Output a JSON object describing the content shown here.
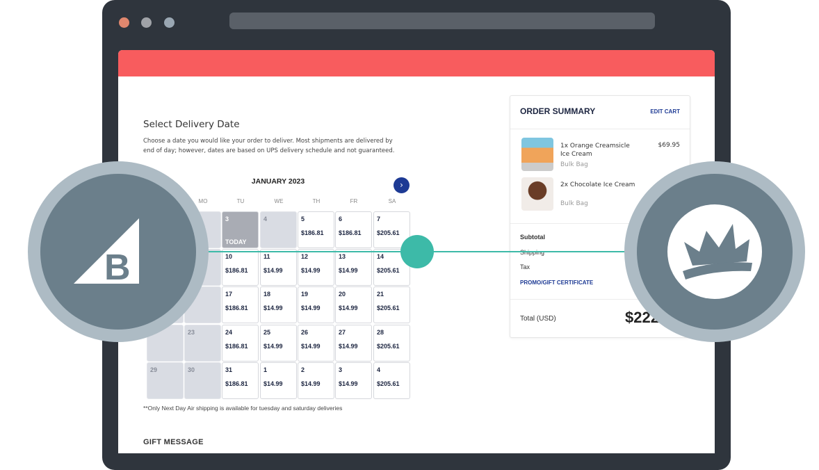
{
  "window": {
    "controls": [
      {
        "name": "close",
        "color": "#e0876e"
      },
      {
        "name": "minimize",
        "color": "#a0a3a8"
      },
      {
        "name": "maximize",
        "color": "#9aa7b3"
      }
    ]
  },
  "banner_color": "#f85c5e",
  "delivery": {
    "title": "Select Delivery Date",
    "description": "Choose a date you would like your order to deliver. Most shipments are delivered by end of day; however, dates are based on UPS delivery schedule and not guaranteed.",
    "month": "JANUARY 2023",
    "next_icon": "chevron-right-icon",
    "weekdays": [
      "",
      "MO",
      "TU",
      "WE",
      "TH",
      "FR",
      "SA"
    ],
    "rows": [
      [
        {
          "d": "",
          "s": "dis"
        },
        {
          "d": "",
          "s": "dis"
        },
        {
          "d": "3",
          "s": "today",
          "tag": "TODAY"
        },
        {
          "d": "4",
          "s": "dis"
        },
        {
          "d": "5",
          "p": "$186.81"
        },
        {
          "d": "6",
          "p": "$186.81"
        },
        {
          "d": "7",
          "p": "$205.61"
        }
      ],
      [
        {
          "d": "",
          "s": "dis"
        },
        {
          "d": "",
          "s": "dis"
        },
        {
          "d": "10",
          "p": "$186.81"
        },
        {
          "d": "11",
          "p": "$14.99"
        },
        {
          "d": "12",
          "p": "$14.99"
        },
        {
          "d": "13",
          "p": "$14.99"
        },
        {
          "d": "14",
          "p": "$205.61"
        }
      ],
      [
        {
          "d": "",
          "s": "dis"
        },
        {
          "d": "",
          "s": "dis"
        },
        {
          "d": "17",
          "p": "$186.81"
        },
        {
          "d": "18",
          "p": "$14.99"
        },
        {
          "d": "19",
          "p": "$14.99"
        },
        {
          "d": "20",
          "p": "$14.99"
        },
        {
          "d": "21",
          "p": "$205.61"
        }
      ],
      [
        {
          "d": "",
          "s": "dis"
        },
        {
          "d": "23",
          "s": "dis"
        },
        {
          "d": "24",
          "p": "$186.81"
        },
        {
          "d": "25",
          "p": "$14.99"
        },
        {
          "d": "26",
          "p": "$14.99"
        },
        {
          "d": "27",
          "p": "$14.99"
        },
        {
          "d": "28",
          "p": "$205.61"
        }
      ],
      [
        {
          "d": "29",
          "s": "dis"
        },
        {
          "d": "30",
          "s": "dis"
        },
        {
          "d": "31",
          "p": "$186.81"
        },
        {
          "d": "1",
          "p": "$14.99"
        },
        {
          "d": "2",
          "p": "$14.99"
        },
        {
          "d": "3",
          "p": "$14.99"
        },
        {
          "d": "4",
          "p": "$205.61"
        }
      ]
    ],
    "note": "**Only Next Day Air shipping is available for tuesday and saturday deliveries"
  },
  "gift_message": "GIFT MESSAGE",
  "summary": {
    "title": "ORDER SUMMARY",
    "edit": "EDIT CART",
    "items": [
      {
        "name": "1x Orange Creamsicle Ice Cream",
        "variant": "Bulk Bag",
        "price": "$69.95"
      },
      {
        "name": "2x Chocolate Ice Cream",
        "variant": "Bulk Bag",
        "price": ""
      }
    ],
    "subtotal": "Subtotal",
    "shipping": "Shipping",
    "tax": "Tax",
    "promo": "PROMO/GIFT CERTIFICATE",
    "total_label": "Total (USD)",
    "total": "$222"
  },
  "integration": {
    "left_logo": "bigcommerce-logo",
    "right_logo": "crown-logo",
    "connector_color": "#3dbaa8"
  }
}
